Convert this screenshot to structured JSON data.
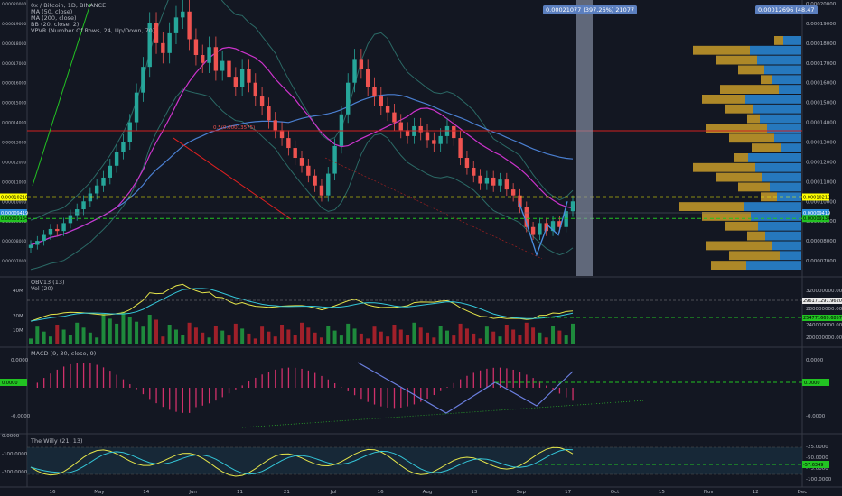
{
  "colors": {
    "background": "#131722",
    "up": "#26a69a",
    "down": "#ef5350",
    "ma50": "#cc33cc",
    "ma200": "#4a7fd1",
    "bb": "#2b6a66",
    "yellow_line": "#ffff00",
    "green_dash": "#22c322",
    "red_line": "#d02020",
    "vp_up": "#2a8ad8",
    "vp_down": "#d4a52a",
    "obv": "#e6e64a",
    "obv_ma": "#34c6d8",
    "macd_hist": "#d0306a",
    "willy": "#e6e64a",
    "willy_ma": "#34c6d8"
  },
  "chart_data": [
    {
      "type": "candlestick",
      "legend": [
        "0x / Bitcoin, 1D, BINANCE",
        "MA (50, close)",
        "MA (200, close)",
        "BB (20, close, 2)",
        "VPVR (Number Of Rows, 24, Up/Down, 70)"
      ],
      "y_ticks": [
        "0.00020000",
        "0.00019000",
        "0.00018000",
        "0.00017000",
        "0.00016000",
        "0.00015000",
        "0.00014000",
        "0.00013000",
        "0.00012000",
        "0.00011000",
        "0.00010000",
        "0.00009000",
        "0.00008000",
        "0.00007000"
      ],
      "ylim": [
        6.5e-05,
        0.0002
      ],
      "x_ticks": [
        "16",
        "May",
        "14",
        "Jun",
        "11",
        "21",
        "Jul",
        "16",
        "Aug",
        "13",
        "Sep",
        "17",
        "Oct",
        "15",
        "Nov",
        "12",
        "Dec"
      ],
      "price_labels": {
        "yellow": "0.00010218",
        "current": "0.00009419",
        "green": "0.00009134",
        "ma": "0.00010000",
        "fib": "0.5(0.00013575)"
      },
      "measure_label": "0.00021077 (397.26%) 21077",
      "right_badge": "0.00012696 (48.47",
      "key_levels": {
        "yellow": 0.00010218,
        "green": 9.134e-05,
        "red": 0.0001357,
        "current": 9.419e-05
      },
      "close_series": [
        7.8e-05,
        8e-05,
        8.3e-05,
        8.6e-05,
        8.5e-05,
        8.9e-05,
        9.3e-05,
        9.6e-05,
        0.0001,
        0.000104,
        0.000108,
        0.000112,
        0.000118,
        0.000125,
        0.00013,
        0.00014,
        0.000155,
        0.000168,
        0.00019,
        0.00018,
        0.000175,
        0.000185,
        0.000193,
        0.000196,
        0.000182,
        0.000174,
        0.00017,
        0.000178,
        0.000166,
        0.000171,
        0.000163,
        0.000158,
        0.000167,
        0.00016,
        0.000153,
        0.000148,
        0.000141,
        0.000136,
        0.000132,
        0.000127,
        0.000122,
        0.000118,
        0.000113,
        0.000108,
        0.000103,
        0.000114,
        0.000128,
        0.000144,
        0.00016,
        0.000172,
        0.000167,
        0.000158,
        0.000153,
        0.000148,
        0.000145,
        0.00014,
        0.000136,
        0.000133,
        0.000138,
        0.000135,
        0.000131,
        0.000129,
        0.000133,
        0.000138,
        0.000132,
        0.000122,
        0.000117,
        0.000113,
        0.000109,
        0.000112,
        0.000108,
        0.000111,
        0.000106,
        0.000103,
        9.7e-05,
        8.7e-05,
        8.3e-05,
        8.9e-05,
        8.5e-05,
        9e-05,
        8.7e-05,
        9.5e-05,
        0.0001
      ]
    },
    {
      "type": "bar",
      "legend": [
        "OBV13 (13)",
        "Vol (20)"
      ],
      "y_ticks_left": [
        "40M",
        "20M",
        "10M"
      ],
      "y_ticks_right": [
        "320000000.0000",
        "280000000.0000",
        "240000000.0000",
        "200000000.0000"
      ],
      "labels": {
        "obv_value": "296171291.9620",
        "obv_ma_value": "254771669.6857"
      }
    },
    {
      "type": "bar",
      "legend": [
        "MACD (9, 30, close, 9)"
      ],
      "y_ticks_left": [
        "0.0000",
        "-0.0000"
      ],
      "y_ticks_right": [
        "0.0000",
        "-0.0000"
      ],
      "labels": {
        "current": "0.0000"
      }
    },
    {
      "type": "line",
      "legend": [
        "The Willy (21, 13)"
      ],
      "y_ticks_left": [
        "0.0000",
        "-100.0000",
        "-200.0000"
      ],
      "y_ticks_right": [
        "-25.0000",
        "-50.0000",
        "-75.0000",
        "-100.0000"
      ],
      "labels": {
        "current": "-57.6349"
      }
    }
  ]
}
